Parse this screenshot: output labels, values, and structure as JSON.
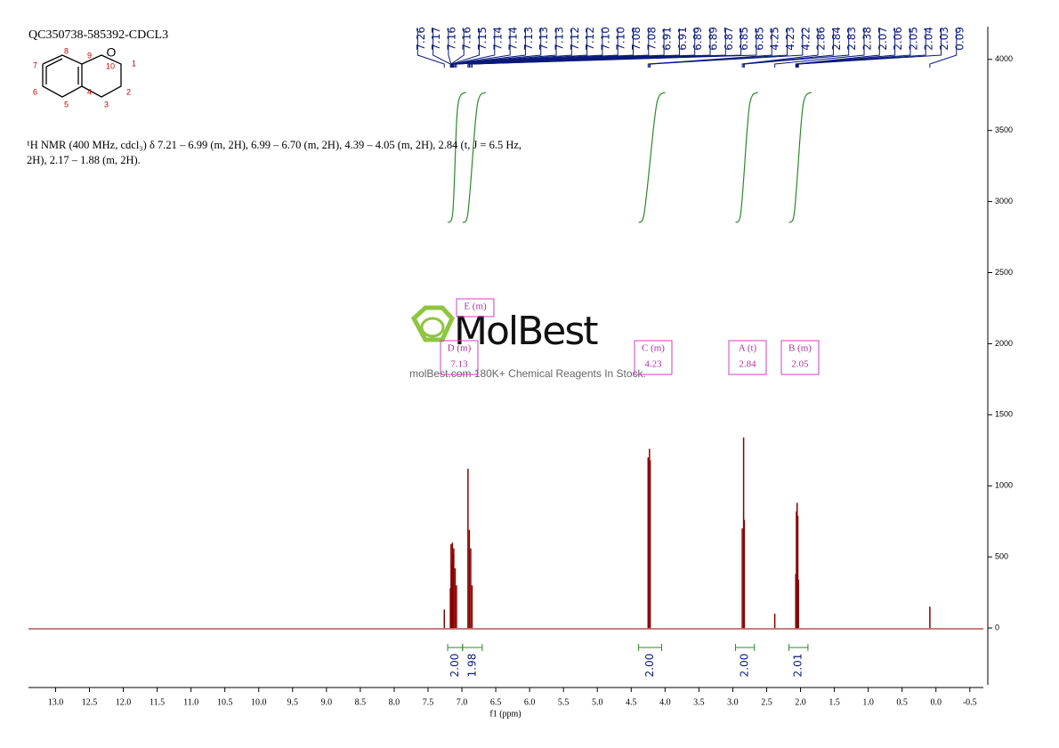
{
  "chart_data": {
    "type": "nmr",
    "title": "QC350738-585392-CDCL3",
    "description": "¹H NMR (400 MHz, cdcl₃) δ 7.21 – 6.99 (m, 2H), 6.99 – 6.70 (m, 2H), 4.39 – 4.05 (m, 2H), 2.84 (t, J = 6.5 Hz, 2H), 2.17 – 1.88 (m, 2H).",
    "x_label": "f1 (ppm)",
    "xlim": [
      13.4,
      -0.7
    ],
    "xticks": [
      {
        "value": 13,
        "label": "13.0"
      },
      {
        "value": 12.5,
        "label": "12.5"
      },
      {
        "value": 12,
        "label": "12.0"
      },
      {
        "value": 11.5,
        "label": "11.5"
      },
      {
        "value": 11,
        "label": "11.0"
      },
      {
        "value": 10.5,
        "label": "10.5"
      },
      {
        "value": 10,
        "label": "10.0"
      },
      {
        "value": 9.5,
        "label": "9.5"
      },
      {
        "value": 9,
        "label": "9.0"
      },
      {
        "value": 8.5,
        "label": "8.5"
      },
      {
        "value": 8,
        "label": "8.0"
      },
      {
        "value": 7.5,
        "label": "7.5"
      },
      {
        "value": 7,
        "label": "7.0"
      },
      {
        "value": 6.5,
        "label": "6.5"
      },
      {
        "value": 6,
        "label": "6.0"
      },
      {
        "value": 5.5,
        "label": "5.5"
      },
      {
        "value": 5,
        "label": "5.0"
      },
      {
        "value": 4.5,
        "label": "4.5"
      },
      {
        "value": 4,
        "label": "4.0"
      },
      {
        "value": 3.5,
        "label": "3.5"
      },
      {
        "value": 3,
        "label": "3.0"
      },
      {
        "value": 2.5,
        "label": "2.5"
      },
      {
        "value": 2,
        "label": "2.0"
      },
      {
        "value": 1.5,
        "label": "1.5"
      },
      {
        "value": 1,
        "label": "1.0"
      },
      {
        "value": 0.5,
        "label": "0.5"
      },
      {
        "value": 0,
        "label": "0.0"
      },
      {
        "value": -0.5,
        "label": "-0.5"
      }
    ],
    "ylim": [
      -400,
      4230
    ],
    "yticks": [
      0,
      500,
      1000,
      1500,
      2000,
      2500,
      3000,
      3500,
      4000
    ],
    "color": "#8b0000",
    "x": [
      7.26,
      7.17,
      7.16,
      7.15,
      7.14,
      7.13,
      7.12,
      7.1,
      7.08,
      6.91,
      6.89,
      6.87,
      6.85,
      4.25,
      4.23,
      4.22,
      2.86,
      2.84,
      2.83,
      2.38,
      2.07,
      2.06,
      2.05,
      2.04,
      2.03,
      0.09
    ],
    "values": [
      130,
      280,
      590,
      450,
      600,
      520,
      560,
      420,
      300,
      1120,
      690,
      560,
      300,
      1200,
      1260,
      1180,
      700,
      1340,
      760,
      100,
      380,
      820,
      880,
      790,
      340,
      150
    ],
    "peak_labels": [
      "7.26",
      "7.17",
      "7.16",
      "7.16",
      "7.15",
      "7.14",
      "7.14",
      "7.13",
      "7.13",
      "7.13",
      "7.12",
      "7.12",
      "7.10",
      "7.10",
      "7.08",
      "7.08",
      "6.91",
      "6.91",
      "6.89",
      "6.89",
      "6.87",
      "6.85",
      "6.85",
      "4.25",
      "4.23",
      "4.22",
      "2.86",
      "2.84",
      "2.83",
      "2.38",
      "2.07",
      "2.06",
      "2.05",
      "2.04",
      "2.03",
      "0.09"
    ],
    "integrals": [
      {
        "range": [
          7.21,
          6.99
        ],
        "value": "2.00"
      },
      {
        "range": [
          6.99,
          6.7
        ],
        "value": "1.98"
      },
      {
        "range": [
          4.39,
          4.05
        ],
        "value": "2.00"
      },
      {
        "range": [
          2.96,
          2.68
        ],
        "value": "2.00"
      },
      {
        "range": [
          2.17,
          1.89
        ],
        "value": "2.01"
      }
    ],
    "multiplets": [
      {
        "label": "E (m)"
      },
      {
        "label": "D (m)",
        "shift": "7.13"
      },
      {
        "label": "C (m)",
        "shift": "4.23"
      },
      {
        "label": "A (t)",
        "shift": "2.84"
      },
      {
        "label": "B (m)",
        "shift": "2.05"
      }
    ],
    "structure": {
      "atoms": [
        "O",
        "1",
        "2",
        "3",
        "4",
        "5",
        "6",
        "7",
        "8",
        "9",
        "10"
      ]
    },
    "watermark": {
      "brand": "MolBest",
      "slogan": "molBest.com 180K+ Chemical Reagents In Stock."
    }
  }
}
